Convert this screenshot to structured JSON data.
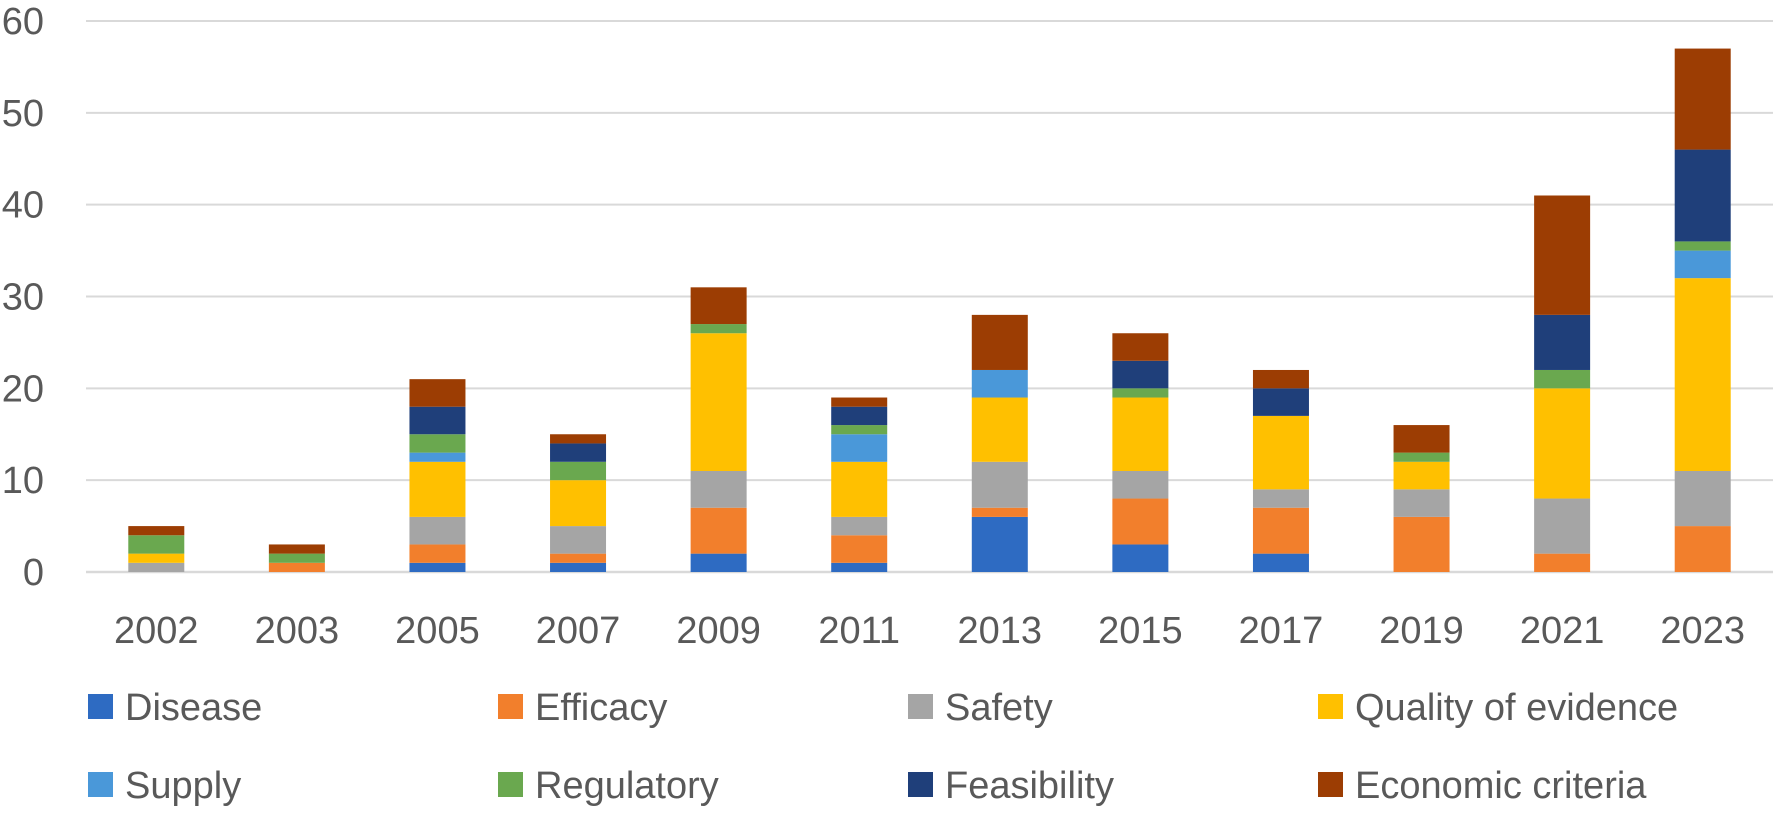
{
  "chart_data": {
    "type": "bar",
    "stacked": true,
    "title": "",
    "xlabel": "",
    "ylabel": "",
    "ylim": [
      0,
      60
    ],
    "yticks": [
      0,
      10,
      20,
      30,
      40,
      50,
      60
    ],
    "grid": true,
    "legend_position": "bottom",
    "categories": [
      "2002",
      "2003",
      "2005",
      "2007",
      "2009",
      "2011",
      "2013",
      "2015",
      "2017",
      "2019",
      "2021",
      "2023"
    ],
    "series": [
      {
        "name": "Disease",
        "color": "#2e6bc2",
        "values": [
          0,
          0,
          1,
          1,
          2,
          1,
          6,
          3,
          2,
          0,
          0,
          0
        ]
      },
      {
        "name": "Efficacy",
        "color": "#f27f2c",
        "values": [
          0,
          1,
          2,
          1,
          5,
          3,
          1,
          5,
          5,
          6,
          2,
          5
        ]
      },
      {
        "name": "Safety",
        "color": "#a5a5a5",
        "values": [
          1,
          0,
          3,
          3,
          4,
          2,
          5,
          3,
          2,
          3,
          6,
          6
        ]
      },
      {
        "name": "Quality of evidence",
        "color": "#ffc000",
        "values": [
          1,
          0,
          6,
          5,
          15,
          6,
          7,
          8,
          8,
          3,
          12,
          21
        ]
      },
      {
        "name": "Supply",
        "color": "#4a98d9",
        "values": [
          0,
          0,
          1,
          0,
          0,
          3,
          3,
          0,
          0,
          0,
          0,
          3
        ]
      },
      {
        "name": "Regulatory",
        "color": "#6aa84f",
        "values": [
          2,
          1,
          2,
          2,
          1,
          1,
          0,
          1,
          0,
          1,
          2,
          1
        ]
      },
      {
        "name": "Feasibility",
        "color": "#1f3f7a",
        "values": [
          0,
          0,
          3,
          2,
          0,
          2,
          0,
          3,
          3,
          0,
          6,
          10
        ]
      },
      {
        "name": "Economic criteria",
        "color": "#9c3d03",
        "values": [
          1,
          1,
          3,
          1,
          4,
          1,
          6,
          3,
          2,
          3,
          13,
          11
        ]
      }
    ],
    "colors": {
      "gridline": "#d9d9d9",
      "axis": "#d9d9d9",
      "text": "#595959"
    }
  }
}
